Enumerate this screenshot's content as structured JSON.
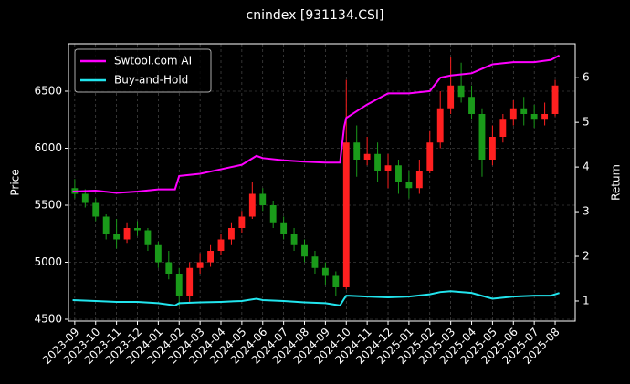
{
  "chart_data": {
    "type": "candlestick",
    "title": "cnindex [931134.CSI]",
    "ylabel": "Price",
    "y2label": "Return",
    "up_color": "#ff2020",
    "down_color": "#1a9a1a",
    "grid": true,
    "legend": "upper left",
    "xlim": [
      -0.3,
      23.96
    ],
    "xticks": [
      {
        "value": 0,
        "label": "2023-09"
      },
      {
        "value": 1,
        "label": "2023-10"
      },
      {
        "value": 2,
        "label": "2023-11"
      },
      {
        "value": 3,
        "label": "2023-12"
      },
      {
        "value": 4,
        "label": "2024-01"
      },
      {
        "value": 5,
        "label": "2024-02"
      },
      {
        "value": 6,
        "label": "2024-03"
      },
      {
        "value": 7,
        "label": "2024-04"
      },
      {
        "value": 8,
        "label": "2024-05"
      },
      {
        "value": 9,
        "label": "2024-06"
      },
      {
        "value": 10,
        "label": "2024-07"
      },
      {
        "value": 11,
        "label": "2024-08"
      },
      {
        "value": 12,
        "label": "2024-09"
      },
      {
        "value": 13,
        "label": "2024-10"
      },
      {
        "value": 14,
        "label": "2024-11"
      },
      {
        "value": 15,
        "label": "2024-12"
      },
      {
        "value": 16,
        "label": "2025-01"
      },
      {
        "value": 17,
        "label": "2025-02"
      },
      {
        "value": 18,
        "label": "2025-03"
      },
      {
        "value": 19,
        "label": "2025-04"
      },
      {
        "value": 20,
        "label": "2025-05"
      },
      {
        "value": 21,
        "label": "2025-06"
      },
      {
        "value": 22,
        "label": "2025-07"
      },
      {
        "value": 23,
        "label": "2025-08"
      }
    ],
    "ylim": [
      4484,
      6916
    ],
    "yticks": [
      4500,
      5000,
      5500,
      6000,
      6500
    ],
    "y2lim": [
      0.55,
      6.76
    ],
    "y2ticks": [
      1,
      2,
      3,
      4,
      5,
      6
    ],
    "x": [
      0,
      0.5,
      1,
      1.5,
      2,
      2.5,
      3,
      3.5,
      4,
      4.5,
      5,
      5.5,
      6,
      6.5,
      7,
      7.5,
      8,
      8.5,
      9,
      9.5,
      10,
      10.5,
      11,
      11.5,
      12,
      12.5,
      13,
      13.5,
      14,
      14.5,
      15,
      15.5,
      16,
      16.5,
      17,
      17.5,
      18,
      18.5,
      19,
      19.5,
      20,
      20.5,
      21,
      21.5,
      22,
      22.5,
      23
    ],
    "open": [
      5650,
      5600,
      5520,
      5400,
      5250,
      5200,
      5300,
      5280,
      5150,
      5000,
      4900,
      4700,
      4950,
      5000,
      5100,
      5200,
      5300,
      5400,
      5600,
      5500,
      5350,
      5250,
      5150,
      5050,
      4950,
      4880,
      4780,
      6050,
      5900,
      5950,
      5800,
      5850,
      5700,
      5650,
      5800,
      6050,
      6350,
      6550,
      6450,
      6300,
      5900,
      6100,
      6250,
      6350,
      6300,
      6250,
      6300
    ],
    "high": [
      5730,
      5640,
      5560,
      5420,
      5380,
      5350,
      5360,
      5300,
      5180,
      5100,
      4950,
      5000,
      5080,
      5150,
      5250,
      5350,
      5450,
      5700,
      5650,
      5540,
      5400,
      5300,
      5200,
      5100,
      5000,
      4920,
      6600,
      6200,
      6100,
      6050,
      5950,
      5900,
      5800,
      5900,
      6150,
      6500,
      6800,
      6750,
      6550,
      6350,
      6200,
      6300,
      6420,
      6450,
      6380,
      6400,
      6600
    ],
    "low": [
      5560,
      5480,
      5360,
      5200,
      5120,
      5170,
      5230,
      5100,
      4950,
      4850,
      4620,
      4650,
      4900,
      4960,
      5060,
      5150,
      5260,
      5380,
      5450,
      5300,
      5200,
      5100,
      5000,
      4900,
      4800,
      4700,
      4760,
      5750,
      5850,
      5700,
      5650,
      5600,
      5560,
      5600,
      5780,
      6000,
      6300,
      6400,
      6250,
      5750,
      5850,
      6050,
      6200,
      6200,
      6180,
      6200,
      6280
    ],
    "close": [
      5600,
      5520,
      5400,
      5250,
      5200,
      5300,
      5280,
      5150,
      5000,
      4900,
      4700,
      4950,
      5000,
      5100,
      5200,
      5300,
      5400,
      5600,
      5500,
      5350,
      5250,
      5150,
      5050,
      4950,
      4880,
      4780,
      6050,
      5900,
      5950,
      5800,
      5850,
      5700,
      5650,
      5800,
      6050,
      6350,
      6550,
      6450,
      6300,
      5900,
      6100,
      6250,
      6350,
      6300,
      6250,
      6300,
      6550
    ],
    "series": [
      {
        "name": "Swtool.com AI",
        "color": "#ff00ff",
        "axis": "y2",
        "x": [
          -0.1,
          1,
          2,
          3,
          4,
          4.8,
          5,
          6,
          7,
          8,
          8.7,
          9,
          10,
          11,
          12,
          12.7,
          12.9,
          13,
          14,
          15,
          16,
          17,
          17.5,
          18,
          19,
          20,
          21,
          22,
          22.8,
          23.2
        ],
        "values": [
          3.45,
          3.47,
          3.42,
          3.45,
          3.5,
          3.5,
          3.8,
          3.85,
          3.95,
          4.05,
          4.25,
          4.2,
          4.15,
          4.12,
          4.1,
          4.1,
          4.9,
          5.1,
          5.4,
          5.65,
          5.65,
          5.7,
          6.0,
          6.05,
          6.1,
          6.3,
          6.35,
          6.35,
          6.4,
          6.5
        ]
      },
      {
        "name": "Buy-and-Hold",
        "color": "#22e5ee",
        "axis": "y2",
        "x": [
          -0.1,
          1,
          2,
          3,
          4,
          4.8,
          5,
          6,
          7,
          8,
          8.7,
          9,
          10,
          11,
          12,
          12.7,
          12.9,
          13,
          14,
          15,
          16,
          17,
          17.5,
          18,
          19,
          20,
          21,
          22,
          22.8,
          23.2
        ],
        "values": [
          1.02,
          1.0,
          0.98,
          0.98,
          0.95,
          0.9,
          0.95,
          0.97,
          0.98,
          1.0,
          1.05,
          1.02,
          1.0,
          0.97,
          0.95,
          0.9,
          1.05,
          1.12,
          1.1,
          1.08,
          1.1,
          1.15,
          1.2,
          1.22,
          1.18,
          1.05,
          1.1,
          1.12,
          1.12,
          1.18
        ]
      }
    ]
  }
}
